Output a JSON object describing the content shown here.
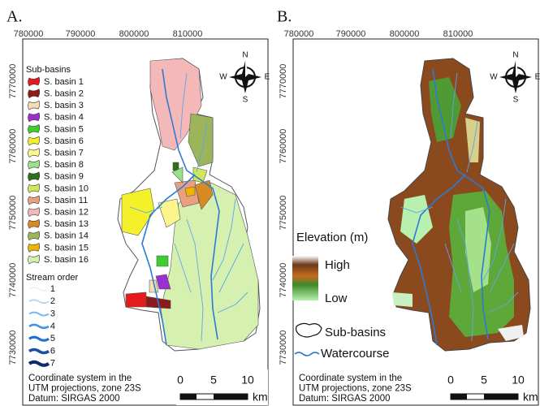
{
  "panels": [
    {
      "label": "A.",
      "x_ticks": [
        "780000",
        "790000",
        "800000",
        "810000"
      ],
      "y_ticks": [
        "7770000",
        "7760000",
        "7750000",
        "7740000",
        "7730000"
      ],
      "legend": {
        "title": "Sub-basins",
        "items": [
          {
            "name": "S. basin 1",
            "color": "#e41a1c"
          },
          {
            "name": "S. basin 2",
            "color": "#8b1a1a"
          },
          {
            "name": "S. basin 3",
            "color": "#f5deb3"
          },
          {
            "name": "S. basin 4",
            "color": "#9b30d0"
          },
          {
            "name": "S. basin 5",
            "color": "#3ccf2e"
          },
          {
            "name": "S. basin 6",
            "color": "#f4f02a"
          },
          {
            "name": "S. basin 7",
            "color": "#fbf58c"
          },
          {
            "name": "S. basin 8",
            "color": "#9be08a"
          },
          {
            "name": "S. basin 9",
            "color": "#2f6e1c"
          },
          {
            "name": "S. basin 10",
            "color": "#cfe85a"
          },
          {
            "name": "S. basin 11",
            "color": "#e9a07e"
          },
          {
            "name": "S. basin 12",
            "color": "#f4b8b8"
          },
          {
            "name": "S. basin 13",
            "color": "#d88a22"
          },
          {
            "name": "S. basin 14",
            "color": "#9cb55a"
          },
          {
            "name": "S. basin 15",
            "color": "#f0b400"
          },
          {
            "name": "S. basin 16",
            "color": "#d6f0b0"
          }
        ]
      },
      "stream_legend": {
        "title": "Stream order",
        "items": [
          {
            "name": "1",
            "color": "#d8ebfb"
          },
          {
            "name": "2",
            "color": "#a9d2f6"
          },
          {
            "name": "3",
            "color": "#7ab8ef"
          },
          {
            "name": "4",
            "color": "#3f93e4"
          },
          {
            "name": "5",
            "color": "#1f6fcf"
          },
          {
            "name": "6",
            "color": "#1a4ea3"
          },
          {
            "name": "7",
            "color": "#0e2b6b"
          }
        ]
      },
      "compass": {
        "n": "N",
        "s": "S",
        "w": "W",
        "e": "E"
      },
      "scale": {
        "ticks": [
          "0",
          "5",
          "10"
        ],
        "unit": "km"
      },
      "note": [
        "Coordinate system in the",
        "UTM projections, zone 23S",
        "Datum: SIRGAS 2000"
      ]
    },
    {
      "label": "B.",
      "x_ticks": [
        "780000",
        "790000",
        "800000",
        "810000"
      ],
      "y_ticks": [
        "7770000",
        "7760000",
        "7750000",
        "7740000",
        "7730000"
      ],
      "elevation": {
        "title": "Elevation (m)",
        "high": "High",
        "low": "Low"
      },
      "sub_basins": "Sub-basins",
      "watercourse": "Watercourse",
      "compass": {
        "n": "N",
        "s": "S",
        "w": "W",
        "e": "E"
      },
      "scale": {
        "ticks": [
          "0",
          "5",
          "10"
        ],
        "unit": "km"
      },
      "note": [
        "Coordinate system in the",
        "UTM projections, zone 23S",
        "Datum: SIRGAS 2000"
      ]
    }
  ]
}
